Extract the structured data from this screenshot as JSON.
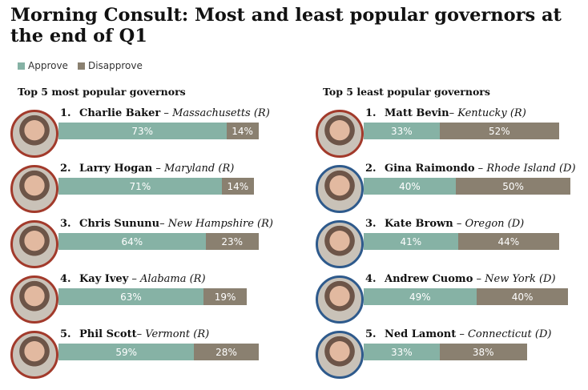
{
  "title": "Morning Consult: Most and least popular governors at the end of Q1",
  "legend": {
    "approve": "Approve",
    "disapprove": "Disapprove"
  },
  "colors": {
    "approve": "#86b2a5",
    "disapprove": "#8a8070",
    "republican": "#a23a2b",
    "democrat": "#2e5a8c"
  },
  "chart_data": [
    {
      "type": "bar",
      "stacked": true,
      "orientation": "horizontal",
      "title": "Top 5 most popular governors",
      "rows": [
        {
          "rank": "1.",
          "name": "Charlie Baker",
          "sep": " – ",
          "state": "Massachusetts (R)",
          "party": "R",
          "approve": 73,
          "disapprove": 14,
          "approve_label": "73%",
          "disapprove_label": "14%"
        },
        {
          "rank": "2.",
          "name": "Larry Hogan",
          "sep": " – ",
          "state": "Maryland (R)",
          "party": "R",
          "approve": 71,
          "disapprove": 14,
          "approve_label": "71%",
          "disapprove_label": "14%"
        },
        {
          "rank": "3.",
          "name": "Chris Sununu",
          "sep": "– ",
          "state": "New Hampshire  (R)",
          "party": "R",
          "approve": 64,
          "disapprove": 23,
          "approve_label": "64%",
          "disapprove_label": "23%"
        },
        {
          "rank": "4.",
          "name": "Kay Ivey",
          "sep": " – ",
          "state": "Alabama (R)",
          "party": "R",
          "approve": 63,
          "disapprove": 19,
          "approve_label": "63%",
          "disapprove_label": "19%"
        },
        {
          "rank": "5.",
          "name": "Phil Scott",
          "sep": "– ",
          "state": "Vermont (R)",
          "party": "R",
          "approve": 59,
          "disapprove": 28,
          "approve_label": "59%",
          "disapprove_label": "28%"
        }
      ]
    },
    {
      "type": "bar",
      "stacked": true,
      "orientation": "horizontal",
      "title": "Top 5 least popular governors",
      "rows": [
        {
          "rank": "1.",
          "name": "Matt Bevin",
          "sep": "– ",
          "state": "Kentucky (R)",
          "party": "R",
          "approve": 33,
          "disapprove": 52,
          "approve_label": "33%",
          "disapprove_label": "52%"
        },
        {
          "rank": "2.",
          "name": "Gina Raimondo",
          "sep": " – ",
          "state": "Rhode Island (D)",
          "party": "D",
          "approve": 40,
          "disapprove": 50,
          "approve_label": "40%",
          "disapprove_label": "50%"
        },
        {
          "rank": "3.",
          "name": "Kate Brown",
          "sep": " – ",
          "state": "Oregon (D)",
          "party": "D",
          "approve": 41,
          "disapprove": 44,
          "approve_label": "41%",
          "disapprove_label": "44%"
        },
        {
          "rank": "4.",
          "name": "Andrew Cuomo",
          "sep": " – ",
          "state": "New York (D)",
          "party": "D",
          "approve": 49,
          "disapprove": 40,
          "approve_label": "49%",
          "disapprove_label": "40%"
        },
        {
          "rank": "5.",
          "name": "Ned Lamont",
          "sep": " – ",
          "state": "Connecticut (D)",
          "party": "D",
          "approve": 33,
          "disapprove": 38,
          "approve_label": "33%",
          "disapprove_label": "38%"
        }
      ]
    }
  ]
}
